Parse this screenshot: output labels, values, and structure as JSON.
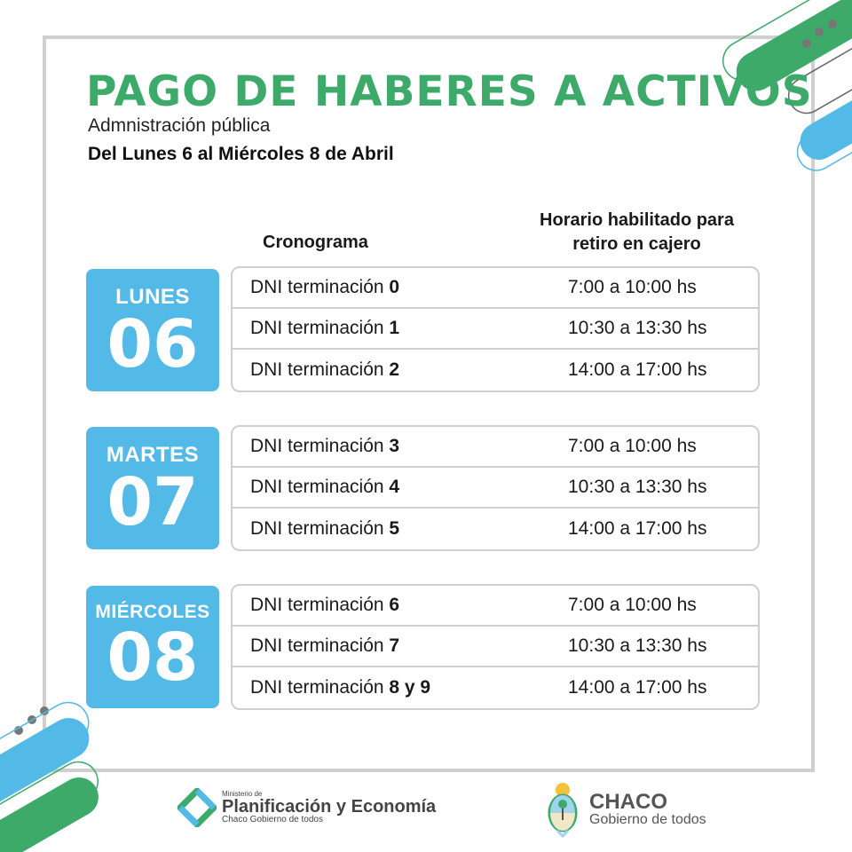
{
  "header": {
    "title": "PAGO DE HABERES A ACTIVOS",
    "subtitle": "Admnistración pública",
    "date_range": "Del Lunes 6 al Miércoles 8 de Abril"
  },
  "columns": {
    "schedule": "Cronograma",
    "hours": "Horario habilitado para",
    "hours_line2": "retiro en cajero"
  },
  "days": [
    {
      "name": "LUNES",
      "number": "06",
      "rows": [
        {
          "label": "DNI terminación",
          "digit": "0",
          "hours": "7:00 a 10:00 hs"
        },
        {
          "label": "DNI terminación",
          "digit": "1",
          "hours": "10:30 a 13:30 hs"
        },
        {
          "label": "DNI terminación",
          "digit": "2",
          "hours": "14:00 a 17:00 hs"
        }
      ]
    },
    {
      "name": "MARTES",
      "number": "07",
      "rows": [
        {
          "label": "DNI terminación",
          "digit": "3",
          "hours": "7:00 a 10:00 hs"
        },
        {
          "label": "DNI terminación",
          "digit": "4",
          "hours": "10:30 a 13:30 hs"
        },
        {
          "label": "DNI terminación",
          "digit": "5",
          "hours": "14:00 a 17:00 hs"
        }
      ]
    },
    {
      "name": "MIÉRCOLES",
      "number": "08",
      "rows": [
        {
          "label": "DNI terminación",
          "digit": "6",
          "hours": "7:00 a 10:00 hs"
        },
        {
          "label": "DNI terminación",
          "digit": "7",
          "hours": "10:30 a 13:30 hs"
        },
        {
          "label": "DNI terminación",
          "digit": "8 y 9",
          "hours": "14:00 a 17:00 hs"
        }
      ]
    }
  ],
  "footer": {
    "ministry": {
      "pre": "Ministerio de",
      "name": "Planificación y Economía",
      "tagline": "Chaco Gobierno de todos"
    },
    "province": {
      "name": "CHACO",
      "tagline": "Gobierno de todos"
    }
  },
  "colors": {
    "green": "#3daa6a",
    "blue": "#53b9e6",
    "gray": "#cfcfcf"
  }
}
